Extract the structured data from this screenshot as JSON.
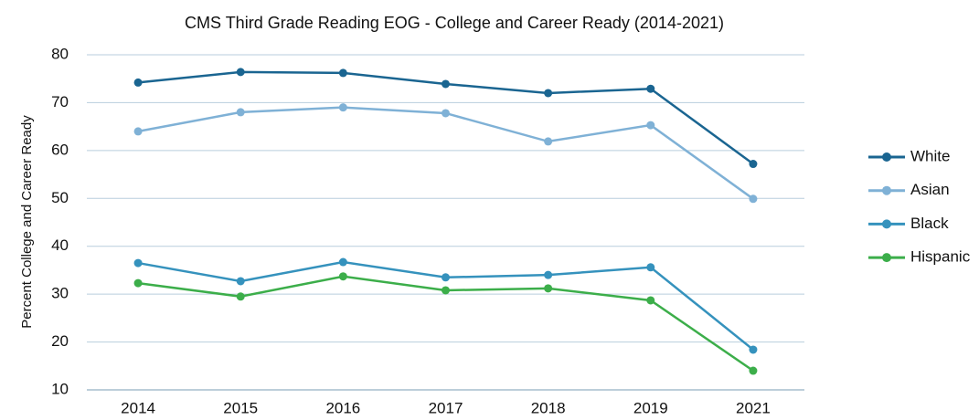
{
  "chart_data": {
    "type": "line",
    "title": "CMS Third Grade Reading EOG - College and Career Ready (2014-2021)",
    "y_label": "Percent College and Career Ready",
    "categories": [
      "2014",
      "2015",
      "2016",
      "2017",
      "2018",
      "2019",
      "2021"
    ],
    "series": [
      {
        "name": "White",
        "color": "#1a6591",
        "values": [
          74.2,
          76.4,
          76.2,
          73.9,
          72.0,
          72.9,
          57.2
        ]
      },
      {
        "name": "Asian",
        "color": "#7fb1d6",
        "values": [
          64.0,
          68.0,
          69.0,
          67.8,
          61.9,
          65.3,
          49.9
        ]
      },
      {
        "name": "Black",
        "color": "#3592bd",
        "values": [
          36.5,
          32.7,
          36.7,
          33.5,
          34.0,
          35.6,
          18.4
        ]
      },
      {
        "name": "Hispanic",
        "color": "#3cae4a",
        "values": [
          32.3,
          29.5,
          33.7,
          30.8,
          31.2,
          28.7,
          14.0
        ]
      }
    ],
    "ylim": [
      10,
      80
    ],
    "yticks": [
      10,
      20,
      30,
      40,
      50,
      60,
      70,
      80
    ],
    "grid": true,
    "legend": "right"
  }
}
